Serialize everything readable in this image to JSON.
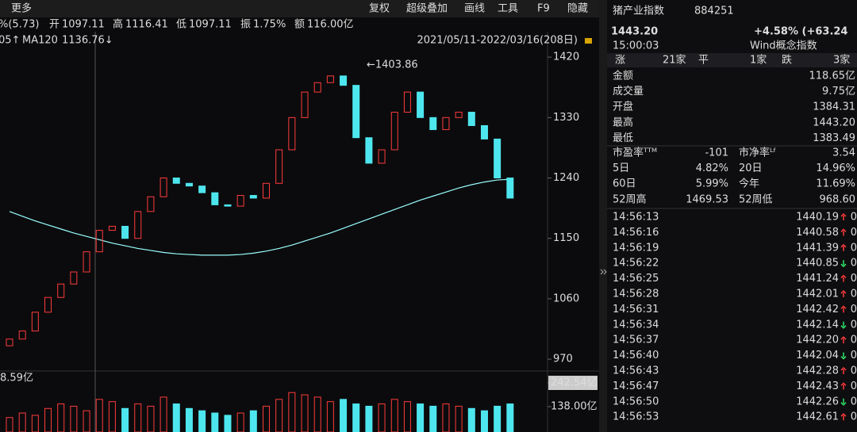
{
  "toolbar": {
    "more": "更多",
    "pct": "%(5.73)",
    "open_label": "开",
    "open": "1097.11",
    "high_label": "高",
    "high": "1116.41",
    "low_label": "低",
    "low": "1097.11",
    "amp_label": "振",
    "amp": "1.75%",
    "amt_label": "额",
    "amt": "116.00亿",
    "buttons": [
      "复权",
      "超级叠加",
      "画线",
      "工具",
      "F9",
      "隐藏"
    ]
  },
  "legend": {
    "prev": "05↑",
    "ma120_label": "MA120",
    "ma120": "1136.76↓",
    "range": "2021/05/11-2022/03/16(208日)"
  },
  "chart_data": {
    "type": "candlestick",
    "annotation": "←1403.86",
    "open": [
      990,
      1000,
      1012,
      1040,
      1062,
      1082,
      1100,
      1130,
      1162,
      1168,
      1150,
      1190,
      1212,
      1240,
      1232,
      1228,
      1218,
      1200,
      1198,
      1214,
      1210,
      1232,
      1282,
      1330,
      1368,
      1382,
      1392,
      1378,
      1300,
      1262,
      1282,
      1338,
      1368,
      1330,
      1312,
      1330,
      1338,
      1318,
      1298,
      1240
    ],
    "close": [
      1000,
      1012,
      1040,
      1062,
      1082,
      1100,
      1130,
      1162,
      1168,
      1150,
      1190,
      1212,
      1240,
      1232,
      1228,
      1218,
      1200,
      1198,
      1214,
      1210,
      1232,
      1282,
      1330,
      1368,
      1382,
      1392,
      1378,
      1300,
      1262,
      1282,
      1338,
      1368,
      1330,
      1312,
      1330,
      1338,
      1318,
      1298,
      1240,
      1210
    ],
    "ma120": [
      1190,
      1183,
      1176,
      1170,
      1164,
      1158,
      1153,
      1148,
      1143,
      1139,
      1135,
      1132,
      1129,
      1127,
      1126,
      1125,
      1125,
      1125,
      1126,
      1128,
      1131,
      1135,
      1140,
      1146,
      1152,
      1158,
      1165,
      1172,
      1179,
      1186,
      1193,
      1200,
      1207,
      1213,
      1219,
      1225,
      1230,
      1234,
      1237,
      1238
    ],
    "ylim": [
      956,
      1452
    ],
    "yticks": [
      970,
      1060,
      1150,
      1240,
      1330,
      1420
    ]
  },
  "volume": {
    "sub": "8.59亿",
    "values": [
      90,
      110,
      100,
      130,
      150,
      140,
      120,
      170,
      160,
      130,
      150,
      140,
      180,
      150,
      130,
      120,
      110,
      100,
      110,
      120,
      140,
      170,
      200,
      190,
      180,
      160,
      170,
      150,
      140,
      150,
      170,
      160,
      150,
      140,
      150,
      140,
      130,
      120,
      140,
      150
    ],
    "ylim": [
      0,
      242.54
    ],
    "yticks": [
      {
        "value": 138,
        "label": "138.00亿"
      },
      {
        "value": 242.54,
        "label": "242.54亿"
      }
    ]
  },
  "quote": {
    "name": "猪产业指数",
    "code": "884251",
    "price": "1443.20",
    "change": "+4.58% (+63.24",
    "time": "15:00:03",
    "category": "Wind概念指数"
  },
  "breadth": {
    "up_label": "涨",
    "up": "21家",
    "flat_label": "平",
    "flat": "1家",
    "down_label": "跌",
    "down": "3家"
  },
  "stats": [
    {
      "label": "金额",
      "value": "118.65亿",
      "red": false
    },
    {
      "label": "成交量",
      "value": "9.75亿",
      "red": false
    },
    {
      "label": "开盘",
      "value": "1384.31",
      "red": true
    },
    {
      "label": "最高",
      "value": "1443.20",
      "red": true
    },
    {
      "label": "最低",
      "value": "1383.49",
      "red": true
    }
  ],
  "metrics": [
    {
      "l1": "市盈率ᵀᵀᴹ",
      "v1": "-101",
      "r1": false,
      "l2": "市净率ᴸᶠ",
      "v2": "3.54",
      "r2": false
    },
    {
      "l1": "5日",
      "v1": "4.82%",
      "r1": true,
      "l2": "20日",
      "v2": "14.96%",
      "r2": true
    },
    {
      "l1": "60日",
      "v1": "5.99%",
      "r1": true,
      "l2": "今年",
      "v2": "11.69%",
      "r2": true
    },
    {
      "l1": "52周高",
      "v1": "1469.53",
      "r1": false,
      "l2": "52周低",
      "v2": "968.60",
      "r2": false
    }
  ],
  "ticks": [
    {
      "time": "14:56:13",
      "price": "1440.19",
      "dir": "up",
      "vol": "0"
    },
    {
      "time": "14:56:16",
      "price": "1440.58",
      "dir": "up",
      "vol": "0"
    },
    {
      "time": "14:56:19",
      "price": "1441.39",
      "dir": "up",
      "vol": "0"
    },
    {
      "time": "14:56:22",
      "price": "1440.85",
      "dir": "down",
      "vol": "0"
    },
    {
      "time": "14:56:25",
      "price": "1441.24",
      "dir": "up",
      "vol": "0"
    },
    {
      "time": "14:56:28",
      "price": "1442.01",
      "dir": "up",
      "vol": "0"
    },
    {
      "time": "14:56:31",
      "price": "1442.42",
      "dir": "up",
      "vol": "0"
    },
    {
      "time": "14:56:34",
      "price": "1442.14",
      "dir": "down",
      "vol": "0"
    },
    {
      "time": "14:56:37",
      "price": "1442.20",
      "dir": "up",
      "vol": "0"
    },
    {
      "time": "14:56:40",
      "price": "1442.04",
      "dir": "down",
      "vol": "0"
    },
    {
      "time": "14:56:43",
      "price": "1442.28",
      "dir": "up",
      "vol": "0"
    },
    {
      "time": "14:56:47",
      "price": "1442.43",
      "dir": "up",
      "vol": "0"
    },
    {
      "time": "14:56:50",
      "price": "1442.26",
      "dir": "down",
      "vol": "0"
    },
    {
      "time": "14:56:53",
      "price": "1442.61",
      "dir": "up",
      "vol": "0"
    }
  ]
}
